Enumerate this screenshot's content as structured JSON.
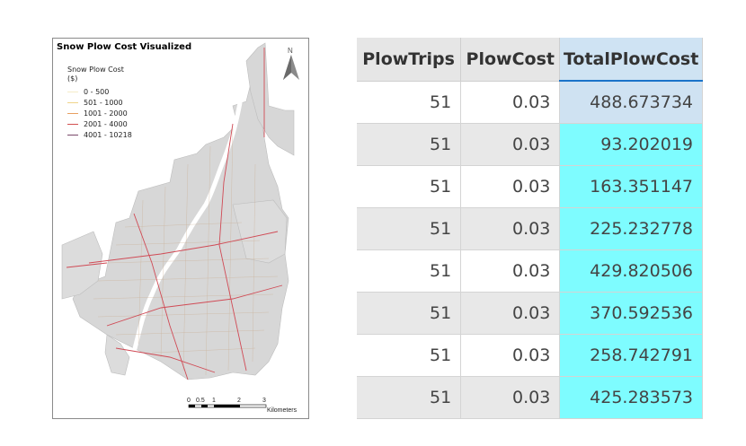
{
  "map": {
    "title": "Snow Plow Cost Visualized",
    "legend_title": "Snow Plow Cost",
    "legend_unit": "($)",
    "legend_items": [
      {
        "label": "0 - 500",
        "color": "#f5ecc8"
      },
      {
        "label": "501 - 1000",
        "color": "#f0d58a"
      },
      {
        "label": "1001 - 2000",
        "color": "#e8a060"
      },
      {
        "label": "2001 - 4000",
        "color": "#d25050"
      },
      {
        "label": "4001 - 10218",
        "color": "#7a4a6a"
      }
    ],
    "north_label": "N",
    "scale_ticks": [
      "0",
      "0.5",
      "1",
      "2",
      "3"
    ],
    "scale_unit": "Kilometers"
  },
  "table": {
    "headers": [
      "PlowTrips",
      "PlowCost",
      "TotalPlowCost"
    ],
    "rows": [
      [
        "51",
        "0.03",
        "488.673734"
      ],
      [
        "51",
        "0.03",
        "93.202019"
      ],
      [
        "51",
        "0.03",
        "163.351147"
      ],
      [
        "51",
        "0.03",
        "225.232778"
      ],
      [
        "51",
        "0.03",
        "429.820506"
      ],
      [
        "51",
        "0.03",
        "370.592536"
      ],
      [
        "51",
        "0.03",
        "258.742791"
      ],
      [
        "51",
        "0.03",
        "425.283573"
      ]
    ]
  }
}
